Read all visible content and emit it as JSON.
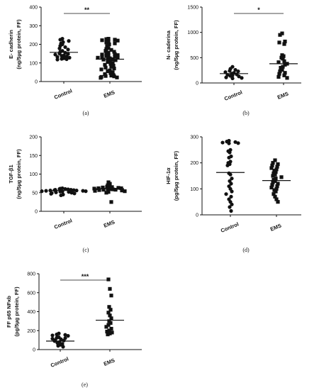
{
  "chart_data": [
    {
      "type": "scatter",
      "panel_label": "(a)",
      "ylabel_lines": [
        "E- cadherin",
        "(ng/5µg protein, FF)"
      ],
      "ylim": [
        0,
        400
      ],
      "yticks": [
        "0",
        "100",
        "200",
        "300",
        "400"
      ],
      "categories": [
        "Control",
        "EMS"
      ],
      "series": [
        {
          "marker": "circle",
          "values": [
            230,
            225,
            218,
            212,
            205,
            200,
            192,
            185,
            178,
            172,
            165,
            160,
            155,
            150,
            148,
            145,
            140,
            138,
            135,
            132,
            128,
            125,
            122,
            120,
            118
          ],
          "mean": 157
        },
        {
          "marker": "square",
          "values": [
            230,
            228,
            225,
            222,
            220,
            215,
            210,
            205,
            200,
            190,
            180,
            175,
            170,
            165,
            160,
            155,
            150,
            148,
            145,
            142,
            140,
            138,
            135,
            132,
            130,
            128,
            125,
            122,
            120,
            118,
            115,
            110,
            105,
            100,
            95,
            90,
            85,
            80,
            75,
            70,
            65,
            60,
            55,
            50,
            45,
            40,
            35,
            32,
            30,
            28,
            25,
            22,
            20
          ],
          "mean": 120
        }
      ],
      "significance": "**"
    },
    {
      "type": "scatter",
      "panel_label": "(b)",
      "ylabel_lines": [
        "N- caderina",
        "(ng/5µg protein, FF)"
      ],
      "ylim": [
        0,
        1500
      ],
      "yticks": [
        "0",
        "500",
        "1000",
        "1500"
      ],
      "categories": [
        "Control",
        "EMS"
      ],
      "series": [
        {
          "marker": "circle",
          "values": [
            320,
            280,
            260,
            240,
            230,
            215,
            200,
            185,
            170,
            160,
            150,
            140,
            130,
            110,
            100,
            90
          ],
          "mean": 185
        },
        {
          "marker": "square",
          "values": [
            980,
            950,
            820,
            800,
            770,
            550,
            530,
            500,
            480,
            430,
            410,
            380,
            360,
            320,
            300,
            260,
            230,
            200,
            180,
            150,
            120,
            100
          ],
          "mean": 380
        }
      ],
      "significance": "*"
    },
    {
      "type": "scatter",
      "panel_label": "(c)",
      "ylabel_lines": [
        "TGF-β1",
        "(ng/5µg protein, FF)"
      ],
      "ylim": [
        0,
        200
      ],
      "yticks": [
        "0",
        "50",
        "100",
        "150",
        "200"
      ],
      "categories": [
        "Control",
        "EMS"
      ],
      "series": [
        {
          "marker": "circle",
          "values": [
            62,
            61,
            60,
            60,
            59,
            58,
            58,
            57,
            57,
            56,
            56,
            55,
            55,
            54,
            54,
            53,
            53,
            52,
            51,
            50,
            49,
            48,
            47,
            45,
            43
          ],
          "mean": 56
        },
        {
          "marker": "square",
          "values": [
            78,
            74,
            70,
            68,
            66,
            65,
            64,
            63,
            62,
            62,
            61,
            60,
            60,
            59,
            58,
            58,
            57,
            56,
            55,
            54,
            52,
            50,
            25
          ],
          "mean": 61
        }
      ],
      "significance": ""
    },
    {
      "type": "scatter",
      "panel_label": "(d)",
      "ylabel_lines": [
        "HIF-1α",
        "(pg/5µg protein, FF)"
      ],
      "ylim": [
        0,
        300
      ],
      "yticks": [
        "0",
        "100",
        "200",
        "300"
      ],
      "categories": [
        "Control",
        "EMS"
      ],
      "series": [
        {
          "marker": "circle",
          "values": [
            285,
            282,
            280,
            278,
            276,
            275,
            250,
            245,
            240,
            225,
            220,
            205,
            200,
            195,
            190,
            160,
            155,
            140,
            130,
            120,
            110,
            100,
            90,
            80,
            70,
            60,
            50,
            40,
            30,
            15
          ],
          "mean": 163
        },
        {
          "marker": "square",
          "values": [
            210,
            200,
            195,
            190,
            185,
            180,
            175,
            170,
            165,
            160,
            155,
            150,
            145,
            140,
            135,
            130,
            125,
            120,
            115,
            110,
            105,
            100,
            95,
            90,
            80,
            70,
            60,
            50
          ],
          "mean": 132
        }
      ],
      "significance": ""
    },
    {
      "type": "scatter",
      "panel_label": "(e)",
      "ylabel_lines": [
        "FF p65 NFκb",
        "(pg/5µg protein, FF)"
      ],
      "ylim": [
        0,
        800
      ],
      "yticks": [
        "0",
        "200",
        "400",
        "600",
        "800"
      ],
      "categories": [
        "Control",
        "EMS"
      ],
      "series": [
        {
          "marker": "circle",
          "values": [
            170,
            160,
            155,
            150,
            145,
            130,
            125,
            120,
            115,
            110,
            100,
            95,
            90,
            80,
            70,
            60,
            50,
            40,
            30
          ],
          "mean": 90
        },
        {
          "marker": "square",
          "values": [
            740,
            640,
            570,
            450,
            420,
            390,
            360,
            330,
            300,
            280,
            260,
            240,
            220,
            200,
            190,
            180,
            170,
            160
          ],
          "mean": 310
        }
      ],
      "significance": "***"
    }
  ]
}
